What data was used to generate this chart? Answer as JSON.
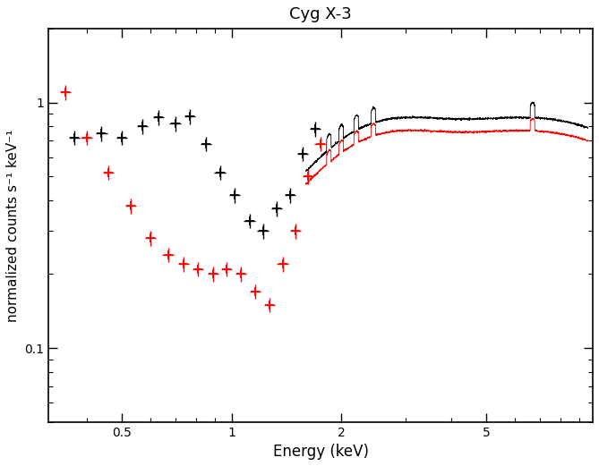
{
  "title": "Cyg X-3",
  "xlabel": "Energy (keV)",
  "ylabel": "normalized counts s⁻¹ keV⁻¹",
  "xlim": [
    0.315,
    9.8
  ],
  "ylim": [
    0.05,
    2.0
  ],
  "background_color": "#ffffff",
  "black_scatter_x": [
    0.37,
    0.44,
    0.5,
    0.57,
    0.63,
    0.7,
    0.77,
    0.85,
    0.93,
    1.02,
    1.12,
    1.22,
    1.33,
    1.45,
    1.57,
    1.7
  ],
  "black_scatter_y": [
    0.72,
    0.75,
    0.72,
    0.8,
    0.87,
    0.82,
    0.88,
    0.68,
    0.52,
    0.42,
    0.33,
    0.3,
    0.37,
    0.42,
    0.62,
    0.78
  ],
  "red_scatter_x": [
    0.35,
    0.4,
    0.46,
    0.53,
    0.6,
    0.67,
    0.74,
    0.81,
    0.89,
    0.97,
    1.06,
    1.16,
    1.27,
    1.38,
    1.5,
    1.62,
    1.75
  ],
  "red_scatter_y": [
    1.1,
    0.72,
    0.52,
    0.38,
    0.28,
    0.24,
    0.22,
    0.21,
    0.2,
    0.21,
    0.2,
    0.17,
    0.15,
    0.22,
    0.3,
    0.5,
    0.68
  ],
  "xticks": [
    0.5,
    1,
    2,
    5
  ],
  "yticks": [
    0.1,
    1
  ],
  "cont_start": 1.6,
  "cont_end": 9.5,
  "cont_points": 2000,
  "black_peak": 0.87,
  "red_peak": 0.77,
  "peak_energy": 3.5,
  "cutoff_energy": 5.5,
  "noise_black": 0.03,
  "noise_red": 0.025
}
